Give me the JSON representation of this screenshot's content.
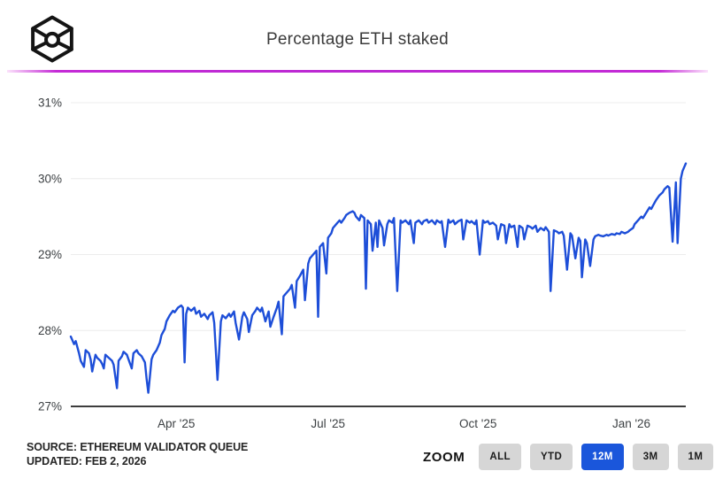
{
  "header": {
    "title": "Percentage ETH staked",
    "logo_icon": "wireframe-cube-logo",
    "divider_color": "#c42ad6"
  },
  "footer": {
    "source_line": "SOURCE: ETHEREUM VALIDATOR QUEUE",
    "updated_line": "UPDATED: FEB 2, 2026"
  },
  "zoom": {
    "label": "ZOOM",
    "active_color": "#1a56db",
    "inactive_color": "#d6d6d6",
    "buttons": [
      {
        "label": "ALL",
        "active": false
      },
      {
        "label": "YTD",
        "active": false
      },
      {
        "label": "12M",
        "active": true
      },
      {
        "label": "3M",
        "active": false
      },
      {
        "label": "1M",
        "active": false
      }
    ]
  },
  "chart_data": {
    "type": "line",
    "title": "Percentage ETH staked",
    "series_name": "Percentage ETH staked",
    "line_color": "#1d4ed8",
    "grid_color": "#ececec",
    "axis_color": "#3d3d3d",
    "label_color": "#3c4043",
    "grid": true,
    "legend": "none",
    "x_unit": "days since 2025-02-01",
    "x_range": [
      0,
      373
    ],
    "ylim": [
      27,
      31
    ],
    "yticks": [
      {
        "value": 31,
        "label": "31%"
      },
      {
        "value": 30,
        "label": "30%"
      },
      {
        "value": 29,
        "label": "29%"
      },
      {
        "value": 28,
        "label": "28%"
      },
      {
        "value": 27,
        "label": "27%"
      }
    ],
    "xticks": [
      {
        "day": 64,
        "label": "Apr '25"
      },
      {
        "day": 156,
        "label": "Jul '25"
      },
      {
        "day": 247,
        "label": "Oct '25"
      },
      {
        "day": 340,
        "label": "Jan '26"
      }
    ],
    "points": [
      [
        0,
        27.92
      ],
      [
        2,
        27.82
      ],
      [
        3,
        27.86
      ],
      [
        5,
        27.7
      ],
      [
        6,
        27.6
      ],
      [
        8,
        27.52
      ],
      [
        9,
        27.74
      ],
      [
        11,
        27.7
      ],
      [
        12,
        27.62
      ],
      [
        13,
        27.46
      ],
      [
        15,
        27.68
      ],
      [
        16,
        27.64
      ],
      [
        18,
        27.6
      ],
      [
        19,
        27.56
      ],
      [
        20,
        27.5
      ],
      [
        21,
        27.68
      ],
      [
        23,
        27.64
      ],
      [
        25,
        27.6
      ],
      [
        26,
        27.55
      ],
      [
        28,
        27.24
      ],
      [
        29,
        27.6
      ],
      [
        31,
        27.66
      ],
      [
        32,
        27.72
      ],
      [
        34,
        27.68
      ],
      [
        35,
        27.62
      ],
      [
        37,
        27.5
      ],
      [
        38,
        27.7
      ],
      [
        40,
        27.74
      ],
      [
        41,
        27.7
      ],
      [
        43,
        27.66
      ],
      [
        45,
        27.58
      ],
      [
        46,
        27.36
      ],
      [
        47,
        27.18
      ],
      [
        49,
        27.62
      ],
      [
        50,
        27.68
      ],
      [
        52,
        27.74
      ],
      [
        54,
        27.84
      ],
      [
        55,
        27.94
      ],
      [
        57,
        28.02
      ],
      [
        58,
        28.12
      ],
      [
        60,
        28.2
      ],
      [
        62,
        28.26
      ],
      [
        63,
        28.24
      ],
      [
        65,
        28.3
      ],
      [
        67,
        28.33
      ],
      [
        68,
        28.3
      ],
      [
        69,
        27.58
      ],
      [
        70,
        28.22
      ],
      [
        71,
        28.3
      ],
      [
        73,
        28.26
      ],
      [
        75,
        28.3
      ],
      [
        76,
        28.22
      ],
      [
        78,
        28.26
      ],
      [
        79,
        28.18
      ],
      [
        81,
        28.22
      ],
      [
        83,
        28.15
      ],
      [
        84,
        28.2
      ],
      [
        86,
        28.24
      ],
      [
        87,
        28.1
      ],
      [
        89,
        27.35
      ],
      [
        91,
        28.12
      ],
      [
        92,
        28.2
      ],
      [
        94,
        28.16
      ],
      [
        96,
        28.22
      ],
      [
        97,
        28.18
      ],
      [
        99,
        28.25
      ],
      [
        100,
        28.1
      ],
      [
        102,
        27.88
      ],
      [
        104,
        28.18
      ],
      [
        105,
        28.24
      ],
      [
        107,
        28.15
      ],
      [
        108,
        27.98
      ],
      [
        110,
        28.2
      ],
      [
        112,
        28.26
      ],
      [
        113,
        28.3
      ],
      [
        115,
        28.25
      ],
      [
        116,
        28.3
      ],
      [
        118,
        28.12
      ],
      [
        120,
        28.25
      ],
      [
        121,
        28.05
      ],
      [
        123,
        28.18
      ],
      [
        125,
        28.3
      ],
      [
        126,
        28.38
      ],
      [
        128,
        27.95
      ],
      [
        129,
        28.45
      ],
      [
        131,
        28.5
      ],
      [
        133,
        28.55
      ],
      [
        134,
        28.6
      ],
      [
        136,
        28.3
      ],
      [
        137,
        28.65
      ],
      [
        139,
        28.72
      ],
      [
        141,
        28.8
      ],
      [
        142,
        28.4
      ],
      [
        144,
        28.88
      ],
      [
        145,
        28.95
      ],
      [
        147,
        29.0
      ],
      [
        149,
        29.05
      ],
      [
        150,
        28.18
      ],
      [
        151,
        29.1
      ],
      [
        153,
        29.15
      ],
      [
        155,
        28.75
      ],
      [
        156,
        29.22
      ],
      [
        158,
        29.28
      ],
      [
        159,
        29.35
      ],
      [
        161,
        29.4
      ],
      [
        163,
        29.45
      ],
      [
        164,
        29.42
      ],
      [
        166,
        29.48
      ],
      [
        167,
        29.52
      ],
      [
        169,
        29.55
      ],
      [
        171,
        29.57
      ],
      [
        172,
        29.55
      ],
      [
        173,
        29.5
      ],
      [
        175,
        29.45
      ],
      [
        176,
        29.52
      ],
      [
        178,
        29.48
      ],
      [
        179,
        28.55
      ],
      [
        180,
        29.45
      ],
      [
        182,
        29.4
      ],
      [
        183,
        29.05
      ],
      [
        185,
        29.42
      ],
      [
        186,
        29.1
      ],
      [
        187,
        29.45
      ],
      [
        189,
        29.35
      ],
      [
        190,
        29.12
      ],
      [
        192,
        29.4
      ],
      [
        193,
        29.45
      ],
      [
        195,
        29.42
      ],
      [
        196,
        29.48
      ],
      [
        198,
        28.52
      ],
      [
        200,
        29.45
      ],
      [
        201,
        29.42
      ],
      [
        203,
        29.45
      ],
      [
        205,
        29.4
      ],
      [
        206,
        29.45
      ],
      [
        208,
        29.15
      ],
      [
        209,
        29.42
      ],
      [
        211,
        29.45
      ],
      [
        213,
        29.4
      ],
      [
        214,
        29.44
      ],
      [
        216,
        29.46
      ],
      [
        217,
        29.42
      ],
      [
        219,
        29.45
      ],
      [
        221,
        29.4
      ],
      [
        222,
        29.45
      ],
      [
        224,
        29.42
      ],
      [
        225,
        29.44
      ],
      [
        227,
        29.1
      ],
      [
        229,
        29.46
      ],
      [
        230,
        29.42
      ],
      [
        232,
        29.45
      ],
      [
        233,
        29.4
      ],
      [
        235,
        29.44
      ],
      [
        237,
        29.46
      ],
      [
        238,
        29.2
      ],
      [
        240,
        29.45
      ],
      [
        242,
        29.42
      ],
      [
        243,
        29.44
      ],
      [
        245,
        29.4
      ],
      [
        246,
        29.45
      ],
      [
        248,
        29.0
      ],
      [
        250,
        29.45
      ],
      [
        251,
        29.42
      ],
      [
        253,
        29.44
      ],
      [
        254,
        29.4
      ],
      [
        256,
        29.42
      ],
      [
        258,
        29.38
      ],
      [
        259,
        29.2
      ],
      [
        261,
        29.4
      ],
      [
        263,
        29.38
      ],
      [
        264,
        29.15
      ],
      [
        266,
        29.4
      ],
      [
        267,
        29.36
      ],
      [
        269,
        29.38
      ],
      [
        271,
        29.1
      ],
      [
        272,
        29.38
      ],
      [
        274,
        29.35
      ],
      [
        275,
        29.2
      ],
      [
        277,
        29.38
      ],
      [
        279,
        29.36
      ],
      [
        280,
        29.34
      ],
      [
        282,
        29.38
      ],
      [
        283,
        29.3
      ],
      [
        285,
        29.35
      ],
      [
        287,
        29.32
      ],
      [
        288,
        29.36
      ],
      [
        290,
        29.3
      ],
      [
        291,
        28.52
      ],
      [
        293,
        29.32
      ],
      [
        295,
        29.3
      ],
      [
        296,
        29.28
      ],
      [
        298,
        29.3
      ],
      [
        299,
        29.25
      ],
      [
        301,
        28.8
      ],
      [
        303,
        29.28
      ],
      [
        304,
        29.25
      ],
      [
        306,
        28.95
      ],
      [
        308,
        29.22
      ],
      [
        309,
        29.18
      ],
      [
        310,
        28.7
      ],
      [
        312,
        29.2
      ],
      [
        313,
        29.15
      ],
      [
        315,
        28.85
      ],
      [
        317,
        29.2
      ],
      [
        318,
        29.24
      ],
      [
        320,
        29.26
      ],
      [
        321,
        29.25
      ],
      [
        323,
        29.24
      ],
      [
        325,
        29.26
      ],
      [
        326,
        29.25
      ],
      [
        328,
        29.27
      ],
      [
        330,
        29.26
      ],
      [
        331,
        29.28
      ],
      [
        333,
        29.27
      ],
      [
        334,
        29.3
      ],
      [
        336,
        29.28
      ],
      [
        338,
        29.3
      ],
      [
        339,
        29.32
      ],
      [
        341,
        29.35
      ],
      [
        342,
        29.4
      ],
      [
        344,
        29.45
      ],
      [
        346,
        29.5
      ],
      [
        347,
        29.48
      ],
      [
        349,
        29.55
      ],
      [
        351,
        29.62
      ],
      [
        352,
        29.6
      ],
      [
        354,
        29.68
      ],
      [
        355,
        29.72
      ],
      [
        357,
        29.78
      ],
      [
        359,
        29.82
      ],
      [
        360,
        29.86
      ],
      [
        362,
        29.9
      ],
      [
        363,
        29.88
      ],
      [
        365,
        29.17
      ],
      [
        367,
        29.95
      ],
      [
        368,
        29.15
      ],
      [
        370,
        30.0
      ],
      [
        371,
        30.1
      ],
      [
        373,
        30.2
      ]
    ]
  }
}
